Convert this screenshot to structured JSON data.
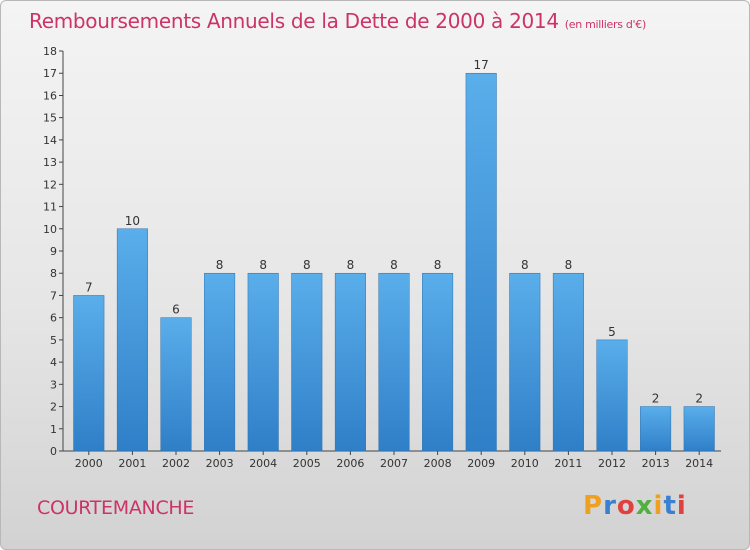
{
  "chart_data": {
    "type": "bar",
    "title": "Remboursements Annuels de la Dette de 2000 à 2014",
    "unit": "(en milliers d'€)",
    "categories": [
      "2000",
      "2001",
      "2002",
      "2003",
      "2004",
      "2005",
      "2006",
      "2007",
      "2008",
      "2009",
      "2010",
      "2011",
      "2012",
      "2013",
      "2014"
    ],
    "values": [
      7,
      10,
      6,
      8,
      8,
      8,
      8,
      8,
      8,
      17,
      8,
      8,
      5,
      2,
      2
    ],
    "ylim": [
      0,
      18
    ],
    "yticks": [
      0,
      1,
      2,
      3,
      4,
      5,
      6,
      7,
      8,
      9,
      10,
      11,
      12,
      13,
      14,
      15,
      16,
      17,
      18
    ],
    "grid": false,
    "bar_color": "#4a9fe0"
  },
  "commune": "COURTEMANCHE",
  "brand": {
    "letters": [
      "P",
      "r",
      "o",
      "x",
      "i",
      "t",
      "i"
    ],
    "colors": [
      "#f0a020",
      "#3a7fd0",
      "#e04040",
      "#50b040",
      "#f0a020",
      "#3a7fd0",
      "#e04040"
    ]
  }
}
